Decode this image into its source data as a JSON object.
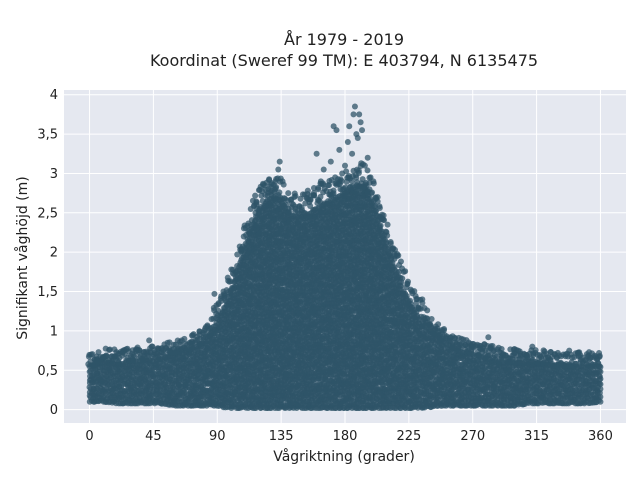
{
  "chart_data": {
    "type": "scatter",
    "title_line1": "År 1979 - 2019",
    "title_line2": "Koordinat (Sweref 99 TM): E 403794, N 6135475",
    "xlabel": "Vågriktning (grader)",
    "ylabel": "Signifikant våghöjd (m)",
    "xlim": [
      -18,
      378
    ],
    "ylim": [
      -0.17,
      4.06
    ],
    "x_ticks": [
      0,
      45,
      90,
      135,
      180,
      225,
      270,
      315,
      360
    ],
    "x_tick_labels": [
      "0",
      "45",
      "90",
      "135",
      "180",
      "225",
      "270",
      "315",
      "360"
    ],
    "y_ticks": [
      0,
      0.5,
      1,
      1.5,
      2,
      2.5,
      3,
      3.5,
      4
    ],
    "y_tick_labels": [
      "0",
      "0,5",
      "1",
      "1,5",
      "2",
      "2,5",
      "3",
      "3,5",
      "4"
    ],
    "grid": true,
    "legend": "none",
    "marker_color": "#2f5468",
    "plot_background": "#e5e8f0",
    "envelope": {
      "x": [
        0,
        10,
        20,
        30,
        40,
        50,
        60,
        70,
        80,
        85,
        90,
        95,
        100,
        105,
        110,
        115,
        120,
        125,
        130,
        135,
        140,
        145,
        150,
        155,
        160,
        165,
        170,
        175,
        180,
        185,
        190,
        195,
        200,
        205,
        210,
        215,
        220,
        225,
        230,
        240,
        250,
        260,
        270,
        280,
        290,
        300,
        310,
        320,
        330,
        340,
        350,
        360
      ],
      "y_max": [
        0.55,
        0.6,
        0.58,
        0.62,
        0.62,
        0.64,
        0.7,
        0.75,
        0.85,
        0.95,
        1.1,
        1.3,
        1.5,
        1.8,
        2.1,
        2.35,
        2.55,
        2.65,
        2.7,
        2.65,
        2.5,
        2.45,
        2.45,
        2.5,
        2.55,
        2.6,
        2.65,
        2.7,
        2.75,
        2.8,
        2.85,
        2.8,
        2.6,
        2.35,
        2.05,
        1.8,
        1.55,
        1.35,
        1.2,
        1.0,
        0.85,
        0.75,
        0.7,
        0.65,
        0.6,
        0.6,
        0.58,
        0.58,
        0.55,
        0.55,
        0.55,
        0.55
      ],
      "y_min": [
        0.1,
        0.1,
        0.08,
        0.08,
        0.08,
        0.08,
        0.05,
        0.05,
        0.05,
        0.05,
        0.05,
        0.03,
        0.02,
        0.02,
        0.02,
        0.02,
        0.02,
        0.02,
        0.02,
        0.02,
        0.02,
        0.02,
        0.02,
        0.02,
        0.02,
        0.02,
        0.02,
        0.02,
        0.02,
        0.02,
        0.02,
        0.02,
        0.02,
        0.02,
        0.02,
        0.02,
        0.02,
        0.02,
        0.02,
        0.03,
        0.05,
        0.05,
        0.05,
        0.05,
        0.05,
        0.05,
        0.08,
        0.08,
        0.08,
        0.08,
        0.08,
        0.1
      ]
    },
    "outliers": [
      {
        "x": 5,
        "y": 0.62
      },
      {
        "x": 12,
        "y": 0.68
      },
      {
        "x": 20,
        "y": 0.62
      },
      {
        "x": 27,
        "y": 0.66
      },
      {
        "x": 33,
        "y": 0.74
      },
      {
        "x": 42,
        "y": 0.88
      },
      {
        "x": 48,
        "y": 0.78
      },
      {
        "x": 55,
        "y": 0.85
      },
      {
        "x": 60,
        "y": 0.72
      },
      {
        "x": 65,
        "y": 0.88
      },
      {
        "x": 72,
        "y": 0.8
      },
      {
        "x": 78,
        "y": 0.9
      },
      {
        "x": 82,
        "y": 1.05
      },
      {
        "x": 86,
        "y": 1.15
      },
      {
        "x": 88,
        "y": 1.47
      },
      {
        "x": 95,
        "y": 1.45
      },
      {
        "x": 118,
        "y": 2.55
      },
      {
        "x": 122,
        "y": 2.65
      },
      {
        "x": 126,
        "y": 2.8
      },
      {
        "x": 128,
        "y": 2.86
      },
      {
        "x": 131,
        "y": 2.9
      },
      {
        "x": 133,
        "y": 3.05
      },
      {
        "x": 134,
        "y": 3.15
      },
      {
        "x": 136,
        "y": 2.9
      },
      {
        "x": 140,
        "y": 2.75
      },
      {
        "x": 145,
        "y": 2.55
      },
      {
        "x": 152,
        "y": 2.62
      },
      {
        "x": 156,
        "y": 2.72
      },
      {
        "x": 160,
        "y": 3.25
      },
      {
        "x": 163,
        "y": 2.9
      },
      {
        "x": 165,
        "y": 3.05
      },
      {
        "x": 168,
        "y": 2.85
      },
      {
        "x": 170,
        "y": 3.15
      },
      {
        "x": 172,
        "y": 3.6
      },
      {
        "x": 174,
        "y": 3.55
      },
      {
        "x": 176,
        "y": 3.3
      },
      {
        "x": 178,
        "y": 3.0
      },
      {
        "x": 180,
        "y": 3.1
      },
      {
        "x": 182,
        "y": 3.4
      },
      {
        "x": 183,
        "y": 3.6
      },
      {
        "x": 185,
        "y": 3.25
      },
      {
        "x": 186,
        "y": 3.75
      },
      {
        "x": 187,
        "y": 3.85
      },
      {
        "x": 188,
        "y": 3.5
      },
      {
        "x": 189,
        "y": 3.45
      },
      {
        "x": 190,
        "y": 3.75
      },
      {
        "x": 191,
        "y": 3.65
      },
      {
        "x": 192,
        "y": 3.55
      },
      {
        "x": 194,
        "y": 3.1
      },
      {
        "x": 196,
        "y": 3.2
      },
      {
        "x": 198,
        "y": 2.95
      },
      {
        "x": 200,
        "y": 2.9
      },
      {
        "x": 203,
        "y": 2.7
      },
      {
        "x": 210,
        "y": 2.35
      },
      {
        "x": 214,
        "y": 2.05
      },
      {
        "x": 218,
        "y": 1.75
      },
      {
        "x": 224,
        "y": 1.6
      },
      {
        "x": 230,
        "y": 1.35
      },
      {
        "x": 236,
        "y": 1.15
      },
      {
        "x": 240,
        "y": 1.05
      },
      {
        "x": 246,
        "y": 1.0
      },
      {
        "x": 254,
        "y": 0.88
      },
      {
        "x": 262,
        "y": 0.9
      },
      {
        "x": 270,
        "y": 0.8
      },
      {
        "x": 281,
        "y": 0.92
      },
      {
        "x": 290,
        "y": 0.72
      },
      {
        "x": 302,
        "y": 0.75
      },
      {
        "x": 312,
        "y": 0.8
      },
      {
        "x": 320,
        "y": 0.7
      },
      {
        "x": 330,
        "y": 0.72
      },
      {
        "x": 338,
        "y": 0.75
      },
      {
        "x": 345,
        "y": 0.68
      },
      {
        "x": 352,
        "y": 0.73
      },
      {
        "x": 358,
        "y": 0.65
      }
    ]
  }
}
